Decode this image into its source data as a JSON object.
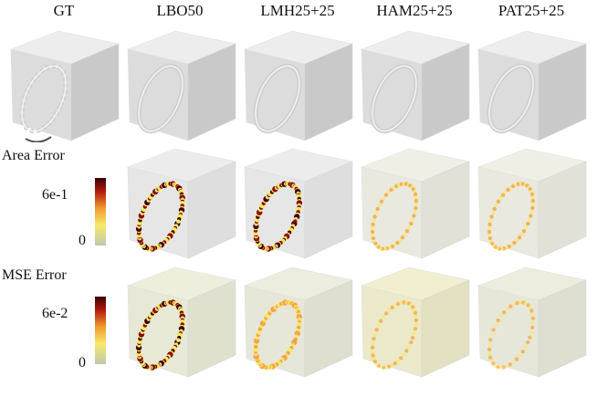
{
  "columns": [
    "GT",
    "LBO50",
    "LMH25+25",
    "HAM25+25",
    "PAT25+25"
  ],
  "rows": {
    "geometry": {
      "label": ""
    },
    "area": {
      "label": "Area Error",
      "cbar_max": "6e-1",
      "cbar_min": "0"
    },
    "mse": {
      "label": "MSE Error",
      "cbar_max": "6e-2",
      "cbar_min": "0"
    }
  },
  "colors": {
    "surface_light": "#ededed",
    "surface_mid": "#dcdcdc",
    "surface_dark": "#c9c9c9",
    "heat_low": "#f7e96b",
    "heat_mid": "#f29a2e",
    "heat_high": "#8b0000",
    "heat_max": "#3a0000"
  }
}
